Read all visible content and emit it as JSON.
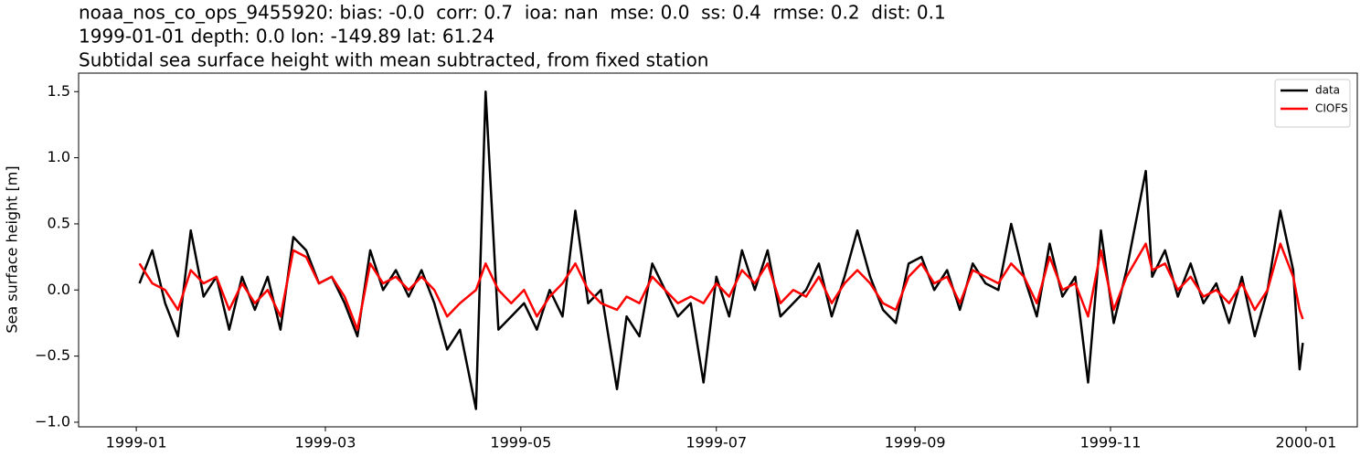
{
  "chart_data": {
    "type": "line",
    "title": [
      "noaa_nos_co_ops_9455920: bias: -0.0  corr: 0.7  ioa: nan  mse: 0.0  ss: 0.4  rmse: 0.2  dist: 0.1",
      "1999-01-01 depth: 0.0 lon: -149.89 lat: 61.24",
      "Subtidal sea surface height with mean subtracted, from fixed station"
    ],
    "y_label": "Sea surface height [m]",
    "x": [
      "1999-01-02",
      "1999-01-06",
      "1999-01-10",
      "1999-01-14",
      "1999-01-18",
      "1999-01-22",
      "1999-01-26",
      "1999-01-30",
      "1999-02-03",
      "1999-02-07",
      "1999-02-11",
      "1999-02-15",
      "1999-02-19",
      "1999-02-23",
      "1999-02-27",
      "1999-03-03",
      "1999-03-07",
      "1999-03-11",
      "1999-03-15",
      "1999-03-19",
      "1999-03-23",
      "1999-03-27",
      "1999-03-31",
      "1999-04-04",
      "1999-04-08",
      "1999-04-12",
      "1999-04-17",
      "1999-04-20",
      "1999-04-24",
      "1999-04-28",
      "1999-05-02",
      "1999-05-06",
      "1999-05-10",
      "1999-05-14",
      "1999-05-18",
      "1999-05-22",
      "1999-05-26",
      "1999-05-31",
      "1999-06-03",
      "1999-06-07",
      "1999-06-11",
      "1999-06-15",
      "1999-06-19",
      "1999-06-23",
      "1999-06-27",
      "1999-07-01",
      "1999-07-05",
      "1999-07-09",
      "1999-07-13",
      "1999-07-17",
      "1999-07-21",
      "1999-07-25",
      "1999-07-29",
      "1999-08-02",
      "1999-08-06",
      "1999-08-10",
      "1999-08-14",
      "1999-08-18",
      "1999-08-22",
      "1999-08-26",
      "1999-08-30",
      "1999-09-03",
      "1999-09-07",
      "1999-09-11",
      "1999-09-15",
      "1999-09-19",
      "1999-09-23",
      "1999-09-27",
      "1999-10-01",
      "1999-10-05",
      "1999-10-09",
      "1999-10-13",
      "1999-10-17",
      "1999-10-21",
      "1999-10-25",
      "1999-10-29",
      "1999-11-02",
      "1999-11-06",
      "1999-11-12",
      "1999-11-14",
      "1999-11-18",
      "1999-11-22",
      "1999-11-26",
      "1999-11-30",
      "1999-12-04",
      "1999-12-08",
      "1999-12-12",
      "1999-12-16",
      "1999-12-20",
      "1999-12-24",
      "1999-12-28",
      "1999-12-30",
      "1999-12-31"
    ],
    "series": [
      {
        "name": "data",
        "color": "#000000",
        "values": [
          0.05,
          0.3,
          -0.1,
          -0.35,
          0.45,
          -0.05,
          0.1,
          -0.3,
          0.1,
          -0.15,
          0.1,
          -0.3,
          0.4,
          0.3,
          0.05,
          0.1,
          -0.1,
          -0.35,
          0.3,
          0.0,
          0.15,
          -0.05,
          0.15,
          -0.1,
          -0.45,
          -0.3,
          -0.9,
          1.5,
          -0.3,
          -0.2,
          -0.1,
          -0.3,
          0.0,
          -0.2,
          0.6,
          -0.1,
          0.0,
          -0.75,
          -0.2,
          -0.35,
          0.2,
          0.0,
          -0.2,
          -0.1,
          -0.7,
          0.1,
          -0.2,
          0.3,
          0.0,
          0.3,
          -0.2,
          -0.1,
          0.0,
          0.2,
          -0.2,
          0.1,
          0.45,
          0.1,
          -0.15,
          -0.25,
          0.2,
          0.25,
          0.0,
          0.15,
          -0.15,
          0.2,
          0.05,
          0.0,
          0.5,
          0.1,
          -0.2,
          0.35,
          -0.05,
          0.1,
          -0.7,
          0.45,
          -0.25,
          0.15,
          0.9,
          0.1,
          0.3,
          -0.05,
          0.2,
          -0.1,
          0.05,
          -0.25,
          0.1,
          -0.35,
          0.0,
          0.6,
          0.15,
          -0.6,
          -0.4
        ]
      },
      {
        "name": "CIOFS",
        "color": "#ff0000",
        "values": [
          0.2,
          0.05,
          0.0,
          -0.15,
          0.15,
          0.05,
          0.1,
          -0.15,
          0.05,
          -0.1,
          0.0,
          -0.2,
          0.3,
          0.25,
          0.05,
          0.1,
          -0.05,
          -0.3,
          0.2,
          0.05,
          0.1,
          0.0,
          0.1,
          0.0,
          -0.2,
          -0.1,
          0.0,
          0.2,
          0.0,
          -0.1,
          0.0,
          -0.2,
          -0.05,
          0.05,
          0.2,
          0.0,
          -0.1,
          -0.15,
          -0.05,
          -0.1,
          0.1,
          0.0,
          -0.1,
          -0.05,
          -0.1,
          0.05,
          -0.05,
          0.15,
          0.05,
          0.2,
          -0.1,
          0.0,
          -0.05,
          0.1,
          -0.1,
          0.05,
          0.15,
          0.05,
          -0.1,
          -0.15,
          0.1,
          0.2,
          0.05,
          0.1,
          -0.1,
          0.15,
          0.1,
          0.05,
          0.2,
          0.1,
          -0.1,
          0.25,
          0.0,
          0.05,
          -0.2,
          0.3,
          -0.15,
          0.1,
          0.35,
          0.15,
          0.2,
          0.0,
          0.1,
          -0.05,
          0.0,
          -0.1,
          0.05,
          -0.15,
          0.0,
          0.35,
          0.1,
          -0.15,
          -0.22
        ]
      }
    ],
    "xlim": [
      "1998-12-14",
      "2000-01-17"
    ],
    "xticks": [
      {
        "value": "1999-01-01",
        "label": "1999-01"
      },
      {
        "value": "1999-03-01",
        "label": "1999-03"
      },
      {
        "value": "1999-05-01",
        "label": "1999-05"
      },
      {
        "value": "1999-07-01",
        "label": "1999-07"
      },
      {
        "value": "1999-09-01",
        "label": "1999-09"
      },
      {
        "value": "1999-11-01",
        "label": "1999-11"
      },
      {
        "value": "2000-01-01",
        "label": "2000-01"
      }
    ],
    "ylim": [
      -1.035,
      1.64
    ],
    "yticks": [
      {
        "value": -1.0,
        "label": "−1.0"
      },
      {
        "value": -0.5,
        "label": "−0.5"
      },
      {
        "value": 0.0,
        "label": "0.0"
      },
      0.5,
      {
        "value": 1.0,
        "label": "1.0"
      },
      1.5
    ],
    "legend": "upper right"
  }
}
